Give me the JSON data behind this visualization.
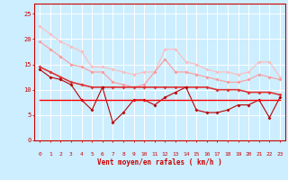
{
  "xlabel": "Vent moyen/en rafales ( km/h )",
  "bg_color": "#cceeff",
  "grid_color": "#ffffff",
  "x": [
    0,
    1,
    2,
    3,
    4,
    5,
    6,
    7,
    8,
    9,
    10,
    11,
    12,
    13,
    14,
    15,
    16,
    17,
    18,
    19,
    20,
    21,
    22,
    23
  ],
  "line1": [
    22.5,
    21.0,
    19.5,
    18.5,
    17.5,
    14.5,
    14.5,
    14.0,
    13.5,
    13.0,
    13.5,
    13.5,
    18.0,
    18.0,
    15.5,
    15.0,
    14.0,
    13.5,
    13.5,
    13.0,
    13.5,
    15.5,
    15.5,
    12.5
  ],
  "line2": [
    19.5,
    18.0,
    16.5,
    15.0,
    14.5,
    13.5,
    13.5,
    11.5,
    11.0,
    10.5,
    11.0,
    13.5,
    16.0,
    13.5,
    13.5,
    13.0,
    12.5,
    12.0,
    11.5,
    11.5,
    12.0,
    13.0,
    12.5,
    12.0
  ],
  "line3": [
    14.5,
    13.5,
    12.5,
    11.5,
    11.0,
    10.5,
    10.5,
    10.5,
    10.5,
    10.5,
    10.5,
    10.5,
    10.5,
    10.5,
    10.5,
    10.5,
    10.5,
    10.0,
    10.0,
    10.0,
    9.5,
    9.5,
    9.5,
    9.0
  ],
  "line4": [
    14.0,
    12.5,
    12.0,
    11.0,
    8.0,
    6.0,
    10.5,
    3.5,
    5.5,
    8.0,
    8.0,
    7.0,
    8.5,
    9.5,
    10.5,
    6.0,
    5.5,
    5.5,
    6.0,
    7.0,
    7.0,
    8.0,
    4.5,
    8.5
  ],
  "line5": [
    8.0,
    8.0,
    8.0,
    8.0,
    8.0,
    8.0,
    8.0,
    8.0,
    8.0,
    8.0,
    8.0,
    8.0,
    8.0,
    8.0,
    8.0,
    8.0,
    8.0,
    8.0,
    8.0,
    8.0,
    8.0,
    8.0,
    8.0,
    8.0
  ],
  "color1": "#ffbbbb",
  "color2": "#ff9999",
  "color3": "#dd3333",
  "color4": "#bb0000",
  "color5": "#ff0000",
  "ylim": [
    0,
    27
  ],
  "yticks": [
    0,
    5,
    10,
    15,
    20,
    25
  ],
  "xticks": [
    0,
    1,
    2,
    3,
    4,
    5,
    6,
    7,
    8,
    9,
    10,
    11,
    12,
    13,
    14,
    15,
    16,
    17,
    18,
    19,
    20,
    21,
    22,
    23
  ],
  "text_color": "#cc0000",
  "axis_color": "#cc0000",
  "arrows": [
    "↙",
    "←",
    "←",
    "←",
    "←",
    "←",
    "↓",
    "↙",
    "→",
    "↓",
    "↘",
    "→",
    "↘",
    "↙",
    "↓",
    "←",
    "↙",
    "←",
    "↙",
    "↙",
    "←",
    "↓",
    "↓",
    "↓"
  ]
}
